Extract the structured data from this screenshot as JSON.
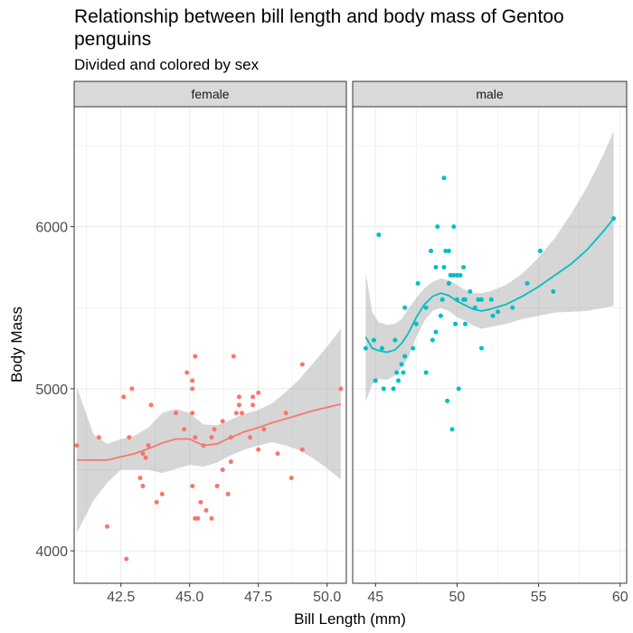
{
  "chart_data": {
    "type": "scatter",
    "title": "Relationship between bill length and body mass of Gentoo penguins",
    "subtitle": "Divided and colored by sex",
    "xlabel": "Bill Length (mm)",
    "ylabel": "Body Mass",
    "ylim": [
      3800,
      6740
    ],
    "y_ticks": [
      4000,
      5000,
      6000
    ],
    "grid": true,
    "legend": "none",
    "facets": [
      {
        "label": "female",
        "color": "#F8766D",
        "xlim": [
          40.8,
          50.7
        ],
        "x_ticks": [
          42.5,
          45.0,
          47.5,
          50.0
        ],
        "x_tick_labels": [
          "42.5",
          "45.0",
          "47.5",
          "50.0"
        ],
        "points": [
          [
            40.9,
            4650
          ],
          [
            41.7,
            4700
          ],
          [
            42.0,
            4150
          ],
          [
            42.6,
            4950
          ],
          [
            42.7,
            3950
          ],
          [
            42.9,
            5000
          ],
          [
            42.8,
            4700
          ],
          [
            43.2,
            4450
          ],
          [
            43.3,
            4400
          ],
          [
            43.3,
            4600
          ],
          [
            43.4,
            4575
          ],
          [
            43.5,
            4650
          ],
          [
            43.6,
            4900
          ],
          [
            43.8,
            4300
          ],
          [
            44.0,
            4350
          ],
          [
            44.5,
            4850
          ],
          [
            44.8,
            4750
          ],
          [
            44.9,
            5100
          ],
          [
            45.1,
            5000
          ],
          [
            45.1,
            5050
          ],
          [
            45.2,
            5200
          ],
          [
            45.1,
            4400
          ],
          [
            45.2,
            4700
          ],
          [
            45.1,
            4850
          ],
          [
            45.2,
            4200
          ],
          [
            45.3,
            4200
          ],
          [
            45.4,
            4300
          ],
          [
            45.5,
            4650
          ],
          [
            45.6,
            4250
          ],
          [
            45.8,
            4200
          ],
          [
            45.8,
            4700
          ],
          [
            45.9,
            4750
          ],
          [
            46.0,
            4400
          ],
          [
            46.2,
            4800
          ],
          [
            46.2,
            4500
          ],
          [
            46.4,
            4350
          ],
          [
            46.5,
            4700
          ],
          [
            46.5,
            4550
          ],
          [
            46.6,
            5200
          ],
          [
            46.7,
            4850
          ],
          [
            46.8,
            4900
          ],
          [
            46.8,
            4950
          ],
          [
            46.9,
            4850
          ],
          [
            47.2,
            4700
          ],
          [
            47.3,
            4900
          ],
          [
            47.3,
            4950
          ],
          [
            47.5,
            4975
          ],
          [
            47.5,
            4625
          ],
          [
            47.7,
            4750
          ],
          [
            48.2,
            4600
          ],
          [
            48.5,
            4850
          ],
          [
            48.7,
            4450
          ],
          [
            49.1,
            5150
          ],
          [
            49.1,
            4625
          ],
          [
            50.5,
            5000
          ]
        ],
        "trend": [
          [
            40.9,
            4560
          ],
          [
            42.0,
            4560
          ],
          [
            43.0,
            4600
          ],
          [
            43.5,
            4630
          ],
          [
            44.0,
            4665
          ],
          [
            44.5,
            4690
          ],
          [
            45.0,
            4690
          ],
          [
            45.5,
            4650
          ],
          [
            46.0,
            4660
          ],
          [
            46.5,
            4700
          ],
          [
            47.0,
            4735
          ],
          [
            47.5,
            4760
          ],
          [
            48.0,
            4790
          ],
          [
            48.5,
            4815
          ],
          [
            49.0,
            4840
          ],
          [
            49.5,
            4865
          ],
          [
            50.0,
            4885
          ],
          [
            50.5,
            4905
          ]
        ],
        "band_upper": [
          [
            40.9,
            5010
          ],
          [
            41.5,
            4720
          ],
          [
            42.0,
            4660
          ],
          [
            42.5,
            4690
          ],
          [
            43.0,
            4710
          ],
          [
            43.5,
            4760
          ],
          [
            44.0,
            4850
          ],
          [
            44.5,
            4875
          ],
          [
            45.0,
            4850
          ],
          [
            45.5,
            4780
          ],
          [
            46.0,
            4775
          ],
          [
            46.5,
            4810
          ],
          [
            47.0,
            4845
          ],
          [
            47.5,
            4870
          ],
          [
            48.0,
            4910
          ],
          [
            48.5,
            4980
          ],
          [
            49.0,
            5060
          ],
          [
            49.5,
            5160
          ],
          [
            50.0,
            5260
          ],
          [
            50.5,
            5370
          ]
        ],
        "band_lower": [
          [
            40.9,
            4110
          ],
          [
            41.5,
            4310
          ],
          [
            42.0,
            4420
          ],
          [
            42.5,
            4500
          ],
          [
            43.0,
            4500
          ],
          [
            43.5,
            4500
          ],
          [
            44.0,
            4480
          ],
          [
            44.5,
            4505
          ],
          [
            45.0,
            4530
          ],
          [
            45.5,
            4520
          ],
          [
            46.0,
            4545
          ],
          [
            46.5,
            4590
          ],
          [
            47.0,
            4625
          ],
          [
            47.5,
            4650
          ],
          [
            48.0,
            4670
          ],
          [
            48.5,
            4650
          ],
          [
            49.0,
            4620
          ],
          [
            49.5,
            4570
          ],
          [
            50.0,
            4510
          ],
          [
            50.5,
            4440
          ]
        ]
      },
      {
        "label": "male",
        "color": "#00BFC4",
        "xlim": [
          43.6,
          60.4
        ],
        "x_ticks": [
          45,
          50,
          55,
          60
        ],
        "x_tick_labels": [
          "45",
          "50",
          "55",
          "60"
        ],
        "points": [
          [
            44.4,
            5250
          ],
          [
            44.9,
            5300
          ],
          [
            45.0,
            5050
          ],
          [
            45.2,
            5950
          ],
          [
            45.4,
            5250
          ],
          [
            45.5,
            5000
          ],
          [
            46.1,
            5000
          ],
          [
            46.2,
            5300
          ],
          [
            46.3,
            5100
          ],
          [
            46.4,
            5050
          ],
          [
            46.6,
            5150
          ],
          [
            46.7,
            5100
          ],
          [
            46.8,
            5200
          ],
          [
            46.8,
            5500
          ],
          [
            47.3,
            5250
          ],
          [
            47.5,
            5400
          ],
          [
            47.6,
            5650
          ],
          [
            48.1,
            5100
          ],
          [
            48.1,
            5500
          ],
          [
            48.4,
            5850
          ],
          [
            48.5,
            5300
          ],
          [
            48.7,
            5750
          ],
          [
            48.7,
            5350
          ],
          [
            48.8,
            6000
          ],
          [
            49.0,
            5450
          ],
          [
            49.1,
            5550
          ],
          [
            49.2,
            5750
          ],
          [
            49.2,
            6300
          ],
          [
            49.3,
            5850
          ],
          [
            49.4,
            4925
          ],
          [
            49.5,
            5850
          ],
          [
            49.5,
            5650
          ],
          [
            49.6,
            5700
          ],
          [
            49.7,
            4750
          ],
          [
            49.8,
            5700
          ],
          [
            49.8,
            6000
          ],
          [
            49.9,
            5400
          ],
          [
            50.0,
            5700
          ],
          [
            50.0,
            5550
          ],
          [
            50.1,
            5000
          ],
          [
            50.2,
            5700
          ],
          [
            50.4,
            5550
          ],
          [
            50.4,
            5750
          ],
          [
            50.5,
            5400
          ],
          [
            50.5,
            5550
          ],
          [
            50.8,
            5600
          ],
          [
            51.1,
            5500
          ],
          [
            51.3,
            5550
          ],
          [
            51.5,
            5250
          ],
          [
            51.5,
            5550
          ],
          [
            52.1,
            5550
          ],
          [
            52.2,
            5450
          ],
          [
            52.5,
            5475
          ],
          [
            53.4,
            5500
          ],
          [
            54.3,
            5650
          ],
          [
            55.1,
            5850
          ],
          [
            55.9,
            5600
          ],
          [
            59.6,
            6050
          ]
        ],
        "trend": [
          [
            44.4,
            5320
          ],
          [
            44.8,
            5250
          ],
          [
            45.2,
            5235
          ],
          [
            45.7,
            5225
          ],
          [
            46.2,
            5240
          ],
          [
            46.6,
            5280
          ],
          [
            47.0,
            5340
          ],
          [
            47.5,
            5440
          ],
          [
            48.0,
            5520
          ],
          [
            48.5,
            5570
          ],
          [
            49.0,
            5590
          ],
          [
            49.5,
            5575
          ],
          [
            50.0,
            5540
          ],
          [
            50.5,
            5515
          ],
          [
            51.0,
            5490
          ],
          [
            51.5,
            5480
          ],
          [
            52.0,
            5490
          ],
          [
            52.5,
            5505
          ],
          [
            53.0,
            5520
          ],
          [
            54.0,
            5570
          ],
          [
            55.0,
            5630
          ],
          [
            56.0,
            5700
          ],
          [
            57.0,
            5770
          ],
          [
            58.0,
            5860
          ],
          [
            59.0,
            5975
          ],
          [
            59.6,
            6050
          ]
        ],
        "band_upper": [
          [
            44.4,
            5720
          ],
          [
            44.8,
            5470
          ],
          [
            45.2,
            5410
          ],
          [
            45.7,
            5395
          ],
          [
            46.2,
            5400
          ],
          [
            46.6,
            5430
          ],
          [
            47.0,
            5490
          ],
          [
            47.5,
            5560
          ],
          [
            48.0,
            5620
          ],
          [
            48.5,
            5660
          ],
          [
            49.0,
            5680
          ],
          [
            49.5,
            5670
          ],
          [
            50.0,
            5640
          ],
          [
            50.5,
            5610
          ],
          [
            51.0,
            5590
          ],
          [
            51.5,
            5590
          ],
          [
            52.0,
            5600
          ],
          [
            53.0,
            5640
          ],
          [
            54.0,
            5710
          ],
          [
            55.0,
            5810
          ],
          [
            56.0,
            5930
          ],
          [
            57.0,
            6080
          ],
          [
            58.0,
            6250
          ],
          [
            59.0,
            6450
          ],
          [
            59.6,
            6590
          ]
        ],
        "band_lower": [
          [
            44.4,
            4920
          ],
          [
            44.8,
            5030
          ],
          [
            45.2,
            5060
          ],
          [
            45.7,
            5055
          ],
          [
            46.2,
            5080
          ],
          [
            46.6,
            5130
          ],
          [
            47.0,
            5190
          ],
          [
            47.5,
            5320
          ],
          [
            48.0,
            5420
          ],
          [
            48.5,
            5480
          ],
          [
            49.0,
            5500
          ],
          [
            49.5,
            5480
          ],
          [
            50.0,
            5440
          ],
          [
            50.5,
            5420
          ],
          [
            51.0,
            5390
          ],
          [
            51.5,
            5370
          ],
          [
            52.0,
            5380
          ],
          [
            53.0,
            5400
          ],
          [
            54.0,
            5430
          ],
          [
            55.0,
            5450
          ],
          [
            56.0,
            5470
          ],
          [
            57.0,
            5475
          ],
          [
            58.0,
            5480
          ],
          [
            59.0,
            5500
          ],
          [
            59.6,
            5510
          ]
        ]
      }
    ]
  }
}
